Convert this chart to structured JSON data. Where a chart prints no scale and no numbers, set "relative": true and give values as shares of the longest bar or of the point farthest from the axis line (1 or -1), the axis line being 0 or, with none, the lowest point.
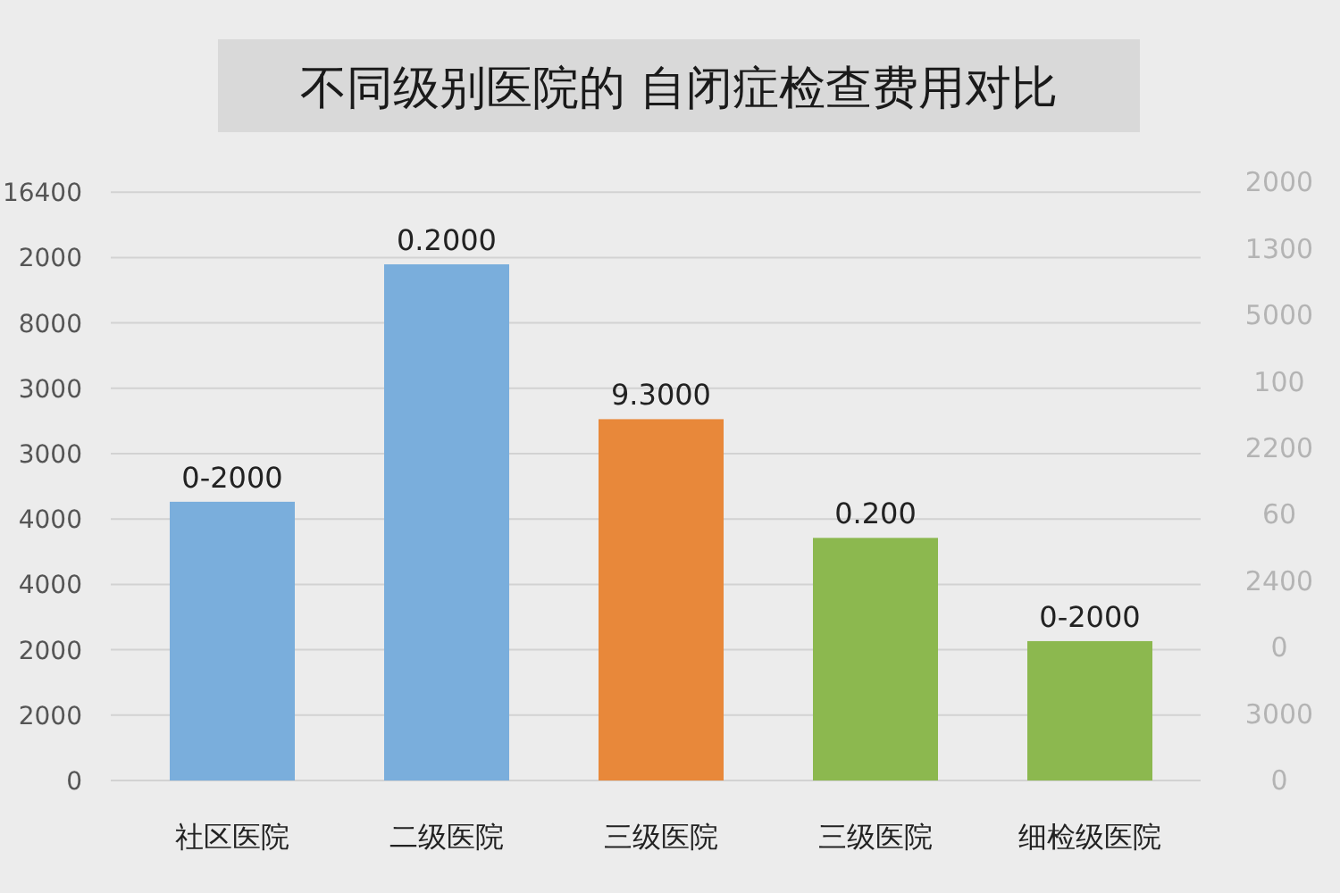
{
  "chart_data": {
    "type": "bar",
    "title": "不同级别医院的 自闭症检查费用对比",
    "categories": [
      "社区医院",
      "二级医院",
      "三级医院",
      "三级医院",
      "细检级医院"
    ],
    "values": [
      0.54,
      1,
      0.7,
      0.47,
      0.27
    ],
    "colors": [
      "#7aaedc",
      "#7aaedc",
      "#e8883a",
      "#8cb84f",
      "#8cb84f"
    ],
    "relative": true,
    "annotations": [
      "0-2000",
      "0.2000",
      "9.3000",
      "0.200",
      "0-2000",
      "0",
      "2000",
      "2000",
      "4000",
      "4000",
      "3000",
      "3000",
      "8000",
      "2000",
      "16400",
      "0",
      "3000",
      "0",
      "2400",
      "60",
      "2200",
      "100",
      "5000",
      "1300",
      "2000"
    ],
    "grid": "y"
  }
}
